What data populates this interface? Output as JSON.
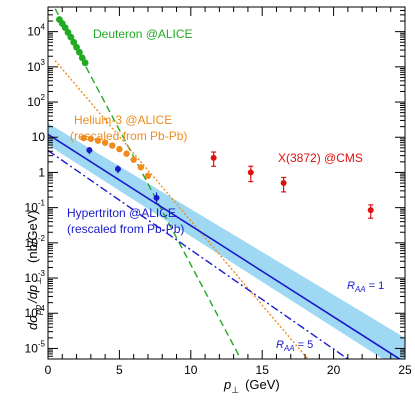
{
  "chart_data": {
    "type": "scatter",
    "xlabel": "p",
    "xlabel_sub": "⊥",
    "xunit": "(GeV)",
    "ylabel_main": "dσ",
    "ylabel_sub": "pp",
    "ylabel_den": "/dp",
    "ylabel_den_sub": "⊥",
    "yunit": "(nb/GeV)",
    "xlim": [
      0,
      25
    ],
    "ylim_log10": [
      -5.3,
      4.7
    ],
    "yscale": "log",
    "x_ticks": [
      0,
      5,
      10,
      15,
      20,
      25
    ],
    "y_tick_exponents": [
      -5,
      -4,
      -3,
      -2,
      -1,
      0,
      1,
      2,
      3,
      4
    ],
    "y_tick_labels": [
      {
        "base": "10",
        "exp": "-5"
      },
      {
        "base": "10",
        "exp": "-4"
      },
      {
        "base": "10",
        "exp": "-3"
      },
      {
        "base": "10",
        "exp": "-2"
      },
      {
        "base": "10",
        "exp": "-1"
      },
      {
        "base": "1",
        "exp": ""
      },
      {
        "base": "10",
        "exp": ""
      },
      {
        "base": "10",
        "exp": "2"
      },
      {
        "base": "10",
        "exp": "3"
      },
      {
        "base": "10",
        "exp": "4"
      }
    ],
    "colors": {
      "deuteron": "#22aa22",
      "helium": "#f08c1e",
      "hypertriton": "#1a1acc",
      "x3872": "#dd1111",
      "band": "#9fd8f2"
    },
    "labels": {
      "deuteron": "Deuteron @ALICE",
      "helium_1": "Helium-3 @ALICE",
      "helium_2": "(rescaled from Pb-Pb)",
      "hyper_1": "Hypertriton @ALICE",
      "hyper_2": "(rescaled from Pb-Pb)",
      "x3872": "X(3872) @CMS",
      "raa1_main": "R",
      "raa1_sub": "AA",
      "raa1_val": " = 1",
      "raa5_main": "R",
      "raa5_sub": "AA",
      "raa5_val": " = 5"
    },
    "series": [
      {
        "name": "Deuteron @ALICE",
        "kind": "points",
        "points": [
          [
            0.8,
            22000
          ],
          [
            1.0,
            17000
          ],
          [
            1.2,
            13000
          ],
          [
            1.4,
            9500
          ],
          [
            1.6,
            7000
          ],
          [
            1.8,
            5000
          ],
          [
            2.0,
            3600
          ],
          [
            2.2,
            2600
          ],
          [
            2.4,
            1800
          ],
          [
            2.6,
            1300
          ]
        ]
      },
      {
        "name": "Helium-3 @ALICE (rescaled from Pb-Pb)",
        "kind": "points",
        "points": [
          [
            2.5,
            9.5
          ],
          [
            3.0,
            9.0
          ],
          [
            3.5,
            8.0
          ],
          [
            4.0,
            7.0
          ],
          [
            4.5,
            5.8
          ],
          [
            5.0,
            4.6
          ],
          [
            5.5,
            3.4
          ],
          [
            6.0,
            2.3
          ],
          [
            6.5,
            1.4
          ],
          [
            7.0,
            0.8
          ]
        ]
      },
      {
        "name": "Hypertriton @ALICE (rescaled from Pb-Pb)",
        "kind": "points",
        "points": [
          [
            2.9,
            4.3
          ],
          [
            4.9,
            1.25
          ],
          [
            7.6,
            0.19
          ]
        ],
        "errors": [
          [
            3.3,
            5.3
          ],
          [
            0.95,
            1.6
          ],
          [
            0.13,
            0.27
          ]
        ]
      },
      {
        "name": "X(3872) @CMS",
        "kind": "points",
        "points": [
          [
            11.6,
            2.6
          ],
          [
            14.2,
            1.0
          ],
          [
            16.5,
            0.5
          ],
          [
            22.6,
            0.085
          ]
        ],
        "errors": [
          [
            1.5,
            3.8
          ],
          [
            0.55,
            1.5
          ],
          [
            0.28,
            0.72
          ],
          [
            0.05,
            0.12
          ]
        ]
      },
      {
        "name": "Deuteron fit",
        "kind": "line",
        "style": "dashed",
        "points": [
          [
            0.5,
            45000
          ],
          [
            13.5,
            5e-06
          ]
        ]
      },
      {
        "name": "Helium-3 fit",
        "kind": "line",
        "style": "dotted",
        "points": [
          [
            0.5,
            1500
          ],
          [
            18.2,
            5e-06
          ]
        ]
      },
      {
        "name": "Hypertriton R_AA = 1",
        "kind": "line",
        "style": "solid",
        "points": [
          [
            0,
            12
          ],
          [
            25,
            4e-06
          ]
        ],
        "band": [
          [
            0,
            6,
            25
          ],
          [
            25,
            2e-06,
            2e-05
          ]
        ]
      },
      {
        "name": "Hypertriton R_AA = 5",
        "kind": "line",
        "style": "dashdot",
        "points": [
          [
            0,
            4.2
          ],
          [
            21,
            5e-06
          ]
        ]
      }
    ]
  }
}
